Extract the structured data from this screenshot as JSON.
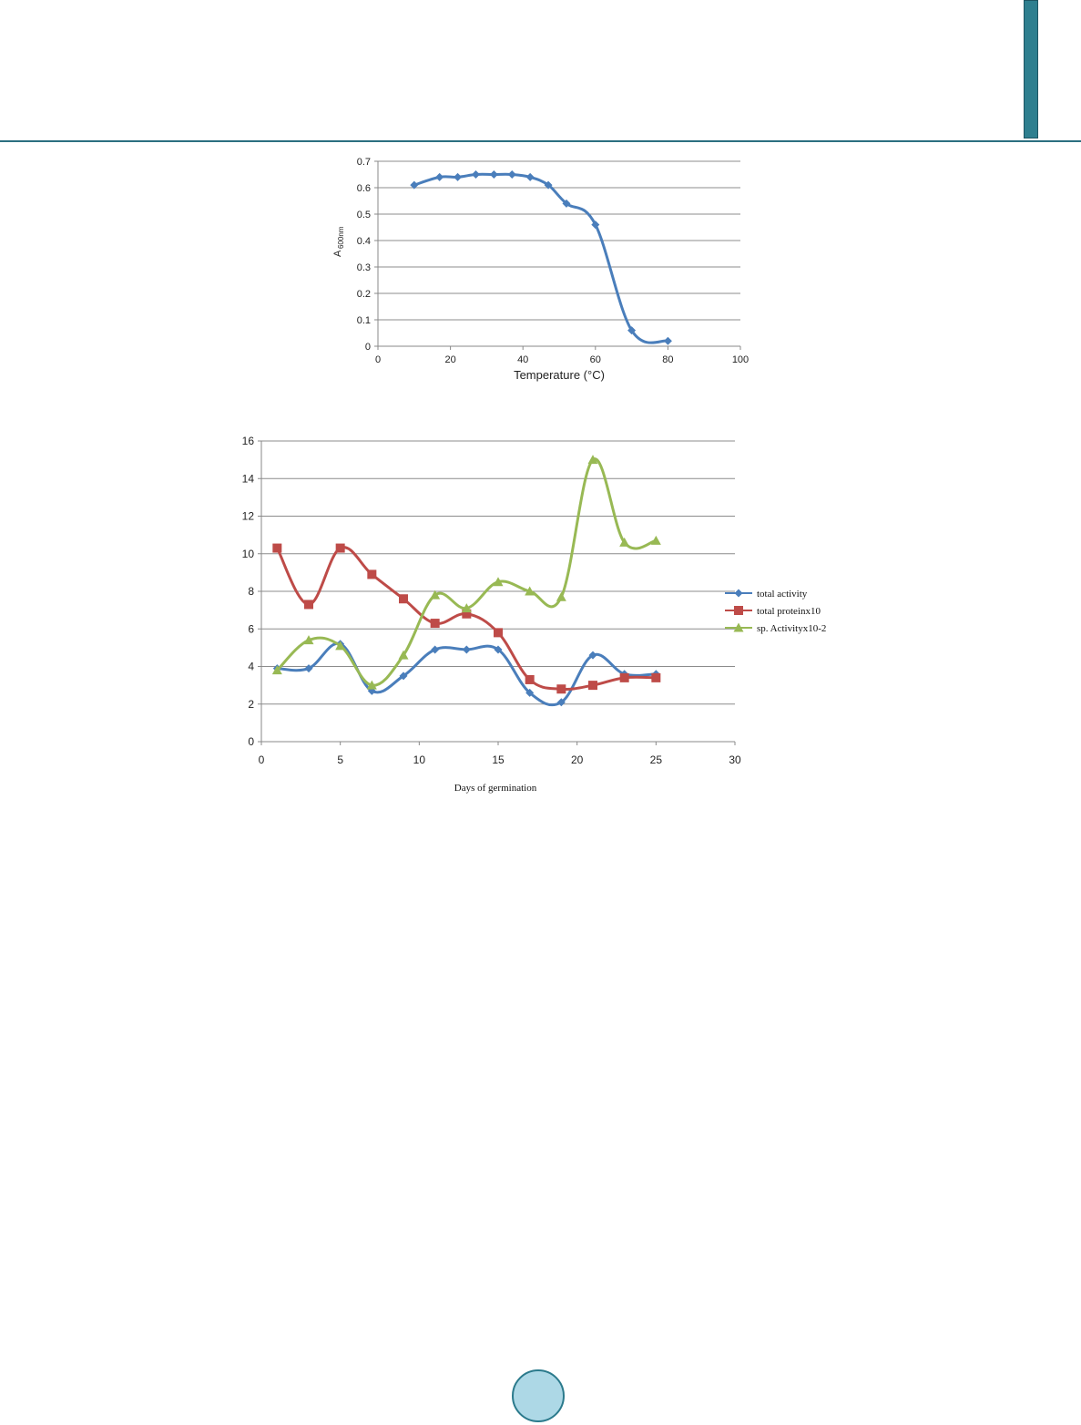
{
  "colors": {
    "header_rule": "#2b6f80",
    "side_tab": "#2e7f8f",
    "page_circle_fill": "#add8e6",
    "page_circle_border": "#2b7a8c",
    "gridline": "#8c8c8c"
  },
  "chart_data": [
    {
      "type": "line",
      "xlabel": "Temperature (°C)",
      "ylabel_main": "A",
      "ylabel_sub": "600nm",
      "xlim": [
        0,
        100
      ],
      "ylim": [
        0,
        0.7
      ],
      "xticks": [
        "0",
        "20",
        "40",
        "60",
        "80",
        "100"
      ],
      "yticks": [
        "0",
        "0.1",
        "0.2",
        "0.3",
        "0.4",
        "0.5",
        "0.6",
        "0.7"
      ],
      "grid": true,
      "series": [
        {
          "color": "#4a7ebb",
          "marker": "diamond",
          "x": [
            10,
            17,
            22,
            27,
            32,
            37,
            42,
            47,
            52,
            60,
            70,
            80
          ],
          "y": [
            0.61,
            0.64,
            0.64,
            0.65,
            0.65,
            0.65,
            0.64,
            0.61,
            0.54,
            0.46,
            0.06,
            0.02
          ]
        }
      ]
    },
    {
      "type": "line",
      "xlabel": "Days of germination",
      "xlim": [
        0,
        30
      ],
      "ylim": [
        0,
        16
      ],
      "xticks": [
        "0",
        "5",
        "10",
        "15",
        "20",
        "25",
        "30"
      ],
      "yticks": [
        "0",
        "2",
        "4",
        "6",
        "8",
        "10",
        "12",
        "14",
        "16"
      ],
      "grid": true,
      "legend_position": "right",
      "series": [
        {
          "name": "total activity",
          "color": "#4a7ebb",
          "marker": "diamond",
          "x": [
            1,
            3,
            5,
            7,
            9,
            11,
            13,
            15,
            17,
            19,
            21,
            23,
            25
          ],
          "y": [
            3.9,
            3.9,
            5.2,
            2.7,
            3.5,
            4.9,
            4.9,
            4.9,
            2.6,
            2.1,
            4.6,
            3.6,
            3.6
          ]
        },
        {
          "name": "total proteinx10",
          "color": "#be4b48",
          "marker": "square",
          "x": [
            1,
            3,
            5,
            7,
            9,
            11,
            13,
            15,
            17,
            19,
            21,
            23,
            25
          ],
          "y": [
            10.3,
            7.3,
            10.3,
            8.9,
            7.6,
            6.3,
            6.8,
            5.8,
            3.3,
            2.8,
            3.0,
            3.4,
            3.4
          ]
        },
        {
          "name": "sp. Activityx10-2",
          "color": "#98b954",
          "marker": "triangle",
          "x": [
            1,
            3,
            5,
            7,
            9,
            11,
            13,
            15,
            17,
            19,
            21,
            23,
            25
          ],
          "y": [
            3.8,
            5.4,
            5.1,
            3.0,
            4.6,
            7.8,
            7.1,
            8.5,
            8.0,
            7.7,
            15.0,
            10.6,
            10.7
          ]
        }
      ]
    }
  ]
}
